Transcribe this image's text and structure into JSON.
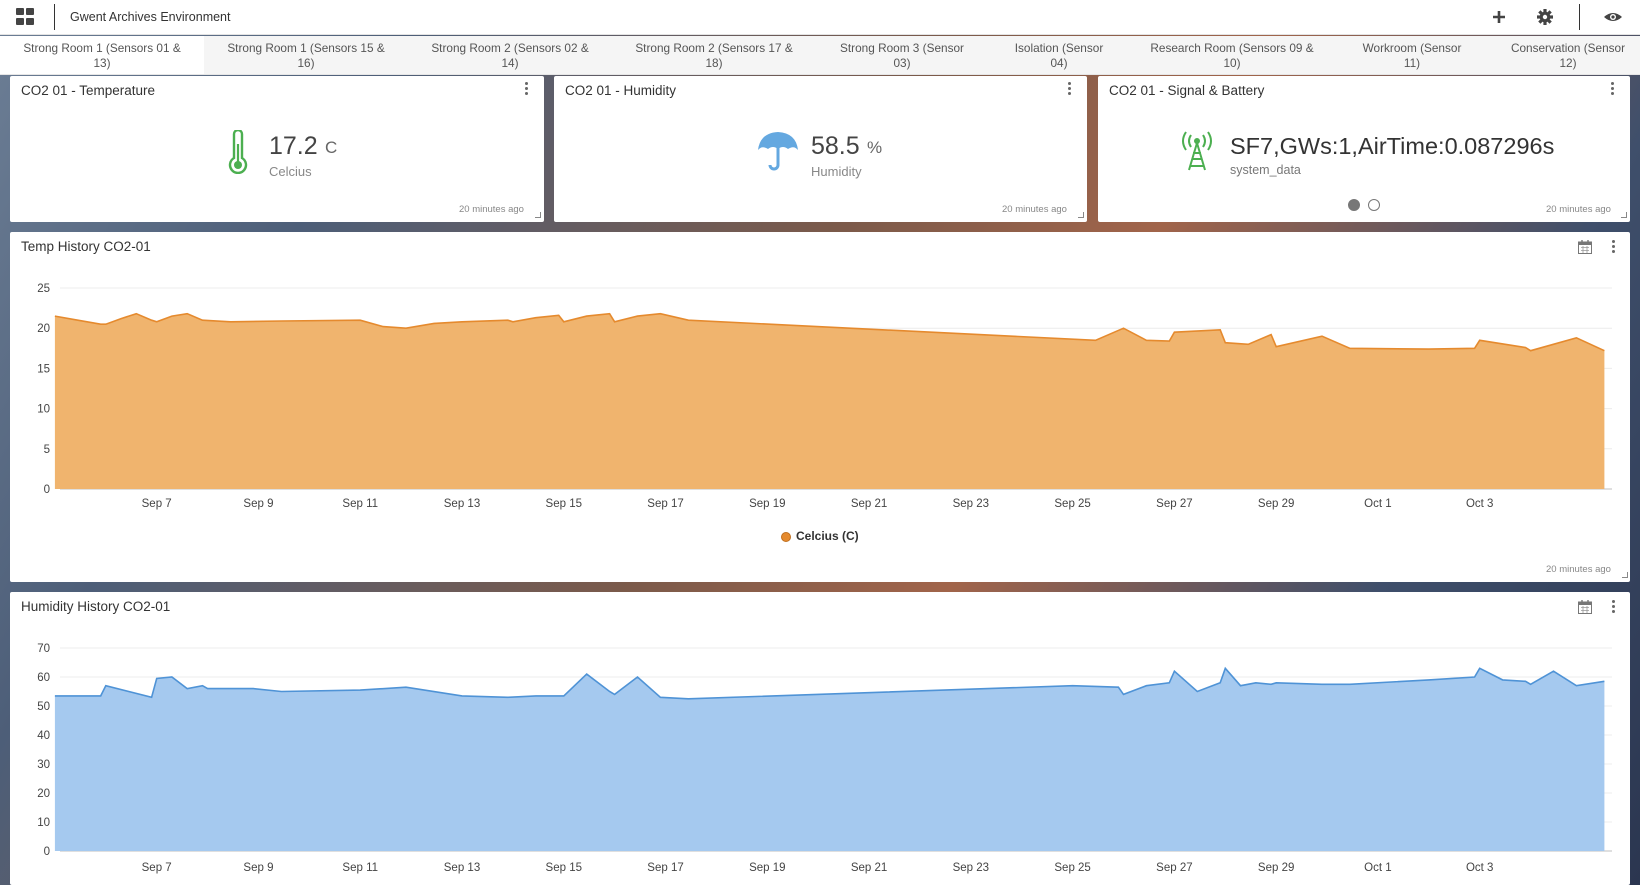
{
  "app": {
    "title": "Gwent Archives Environment"
  },
  "icons": {
    "apps": "apps-grid-icon",
    "add": "plus-icon",
    "settings": "gear-icon",
    "view": "eye-icon",
    "menu": "kebab-menu-icon",
    "calendar": "calendar-icon",
    "thermometer": "thermometer-icon",
    "umbrella": "umbrella-icon",
    "antenna": "antenna-icon"
  },
  "tabs": [
    {
      "line1": "Strong Room 1 (Sensors 01 &",
      "line2": "13)"
    },
    {
      "line1": "Strong Room 1 (Sensors 15 &",
      "line2": "16)"
    },
    {
      "line1": "Strong Room 2 (Sensors 02 &",
      "line2": "14)"
    },
    {
      "line1": "Strong Room 2 (Sensors 17 &",
      "line2": "18)"
    },
    {
      "line1": "Strong Room 3 (Sensor",
      "line2": "03)"
    },
    {
      "line1": "Isolation (Sensor",
      "line2": "04)"
    },
    {
      "line1": "Research Room (Sensors 09 &",
      "line2": "10)"
    },
    {
      "line1": "Workroom (Sensor",
      "line2": "11)"
    },
    {
      "line1": "Conservation (Sensor",
      "line2": "12)"
    }
  ],
  "widgets": {
    "temperature": {
      "title": "CO2 01 - Temperature",
      "value": "17.2",
      "unit": "C",
      "label": "Celcius",
      "updated": "20 minutes ago",
      "color": "#4caf50"
    },
    "humidity": {
      "title": "CO2 01 - Humidity",
      "value": "58.5",
      "unit": "%",
      "label": "Humidity",
      "updated": "20 minutes ago",
      "color": "#64a8e0"
    },
    "signal": {
      "title": "CO2 01 - Signal & Battery",
      "value": "SF7,GWs:1,AirTime:0.087296s",
      "label": "system_data",
      "updated": "20 minutes ago",
      "color": "#4caf50",
      "pages": 2,
      "active_page": 1
    }
  },
  "charts": {
    "temp_history": {
      "title": "Temp History CO2-01",
      "updated": "20 minutes ago"
    },
    "humidity_history": {
      "title": "Humidity History CO2-01"
    }
  },
  "chart_data": [
    {
      "type": "area",
      "title": "Temp History CO2-01",
      "xlabel": "",
      "ylabel": "",
      "ylim": [
        0,
        25
      ],
      "yticks": [
        0,
        5,
        10,
        15,
        20,
        25
      ],
      "xlim": [
        "Sep 5",
        "Oct 5"
      ],
      "x_tick_labels": [
        "Sep 7",
        "Sep 9",
        "Sep 11",
        "Sep 13",
        "Sep 15",
        "Sep 17",
        "Sep 19",
        "Sep 21",
        "Sep 23",
        "Sep 25",
        "Sep 27",
        "Sep 29",
        "Oct 1",
        "Oct 3"
      ],
      "grid": true,
      "legend": "bottom-center",
      "series": [
        {
          "name": "Celcius (C)",
          "color": "#e58a2e",
          "fill": "#f0b46e",
          "x": [
            "Sep 5",
            "Sep 5",
            "Sep 5",
            "Sep 6",
            "Sep 6",
            "Sep 6",
            "Sep 6",
            "Sep 7",
            "Sep 7",
            "Sep 7",
            "Sep 7",
            "Sep 8",
            "Sep 9",
            "Sep 11",
            "Sep 11",
            "Sep 11",
            "Sep 12",
            "Sep 13",
            "Sep 13",
            "Sep 14",
            "Sep 14",
            "Sep 14",
            "Sep 15",
            "Sep 15",
            "Sep 15",
            "Sep 16",
            "Sep 16",
            "Sep 16",
            "Sep 17",
            "Sep 25",
            "Sep 26",
            "Sep 26",
            "Sep 26",
            "Sep 27",
            "Sep 27",
            "Sep 28",
            "Sep 28",
            "Sep 28",
            "Sep 29",
            "Sep 29",
            "Sep 30",
            "Oct 2",
            "Oct 2",
            "Oct 3",
            "Oct 3",
            "Oct 4",
            "Oct 4",
            "Oct 5"
          ],
          "values": [
            21.5,
            21,
            20.5,
            20.5,
            21.2,
            21.8,
            21,
            20.8,
            21.5,
            21.8,
            21,
            20.8,
            20.9,
            21,
            20.2,
            20,
            20.6,
            20.8,
            21,
            20.8,
            21.3,
            21.6,
            20.8,
            21.5,
            21.8,
            20.8,
            21.5,
            21.8,
            21,
            18.5,
            20,
            18.5,
            18.4,
            19.5,
            19.8,
            18.2,
            18,
            19.2,
            17.7,
            19,
            17.5,
            17.4,
            17.5,
            18.5,
            17.6,
            17.2,
            18.8,
            17.2
          ]
        }
      ]
    },
    {
      "type": "area",
      "title": "Humidity History CO2-01",
      "xlabel": "",
      "ylabel": "",
      "ylim": [
        0,
        70
      ],
      "yticks": [
        0,
        10,
        20,
        30,
        40,
        50,
        60,
        70
      ],
      "xlim": [
        "Sep 5",
        "Oct 5"
      ],
      "x_tick_labels": [
        "Sep 7",
        "Sep 9",
        "Sep 11",
        "Sep 13",
        "Sep 15",
        "Sep 17",
        "Sep 19",
        "Sep 21",
        "Sep 23",
        "Sep 25",
        "Sep 27",
        "Sep 29",
        "Oct 1",
        "Oct 3"
      ],
      "grid": true,
      "series": [
        {
          "color": "#4f93d6",
          "fill": "#a5c9ef",
          "x": [
            "Sep 5",
            "Sep 5",
            "Sep 6",
            "Sep 6",
            "Sep 7",
            "Sep 7",
            "Sep 7",
            "Sep 7",
            "Sep 8",
            "Sep 8",
            "Sep 9",
            "Sep 11",
            "Sep 11",
            "Sep 13",
            "Sep 13",
            "Sep 14",
            "Sep 15",
            "Sep 15",
            "Sep 15",
            "Sep 16",
            "Sep 16",
            "Sep 16",
            "Sep 17",
            "Sep 25",
            "Sep 25",
            "Sep 26",
            "Sep 26",
            "Sep 26",
            "Sep 27",
            "Sep 27",
            "Sep 27",
            "Sep 28",
            "Sep 28",
            "Sep 28",
            "Sep 28",
            "Sep 29",
            "Sep 29",
            "Sep 30",
            "Oct 2",
            "Oct 2",
            "Oct 3",
            "Oct 3",
            "Oct 3",
            "Oct 4",
            "Oct 4",
            "Oct 4",
            "Oct 5"
          ],
          "values": [
            53.5,
            53.5,
            57,
            53,
            59.5,
            60,
            56,
            57,
            56,
            56,
            55,
            55.5,
            56.5,
            53.5,
            53,
            53.5,
            53.5,
            61,
            55,
            54,
            60,
            53,
            52.5,
            57,
            56.5,
            54,
            57,
            58,
            62,
            55,
            58,
            63,
            57,
            58,
            57.5,
            58,
            57.5,
            57.5,
            59,
            60,
            63,
            59,
            58.5,
            57.5,
            62,
            57,
            58.5
          ]
        }
      ]
    }
  ]
}
